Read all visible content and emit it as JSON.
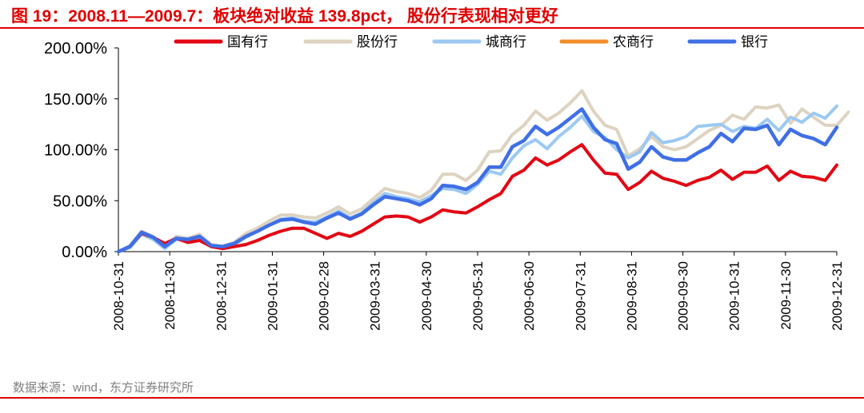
{
  "header": {
    "title": "图 19：2008.11—2009.7：板块绝对收益 139.8pct， 股份行表现相对更好"
  },
  "footer": {
    "source": "数据来源：wind，东方证券研究所"
  },
  "chart_data": {
    "type": "line",
    "title": "图 19：2008.11—2009.7：板块绝对收益 139.8pct， 股份行表现相对更好",
    "xlabel": "",
    "ylabel": "",
    "ylim": [
      0,
      200
    ],
    "yticks": [
      "0.00%",
      "50.00%",
      "100.00%",
      "150.00%",
      "200.00%"
    ],
    "ytick_values": [
      0,
      50,
      100,
      150,
      200
    ],
    "x_tick_labels": [
      "2008-10-31",
      "2008-11-30",
      "2008-12-31",
      "2009-01-31",
      "2009-02-28",
      "2009-03-31",
      "2009-04-30",
      "2009-05-31",
      "2009-06-30",
      "2009-07-31",
      "2009-08-31",
      "2009-09-30",
      "2009-10-31",
      "2009-11-30",
      "2009-12-31"
    ],
    "x_tick_positions": [
      0,
      5,
      10,
      15,
      20,
      25,
      30,
      35,
      40,
      45,
      50,
      55,
      60,
      65,
      70
    ],
    "legend_position": "top",
    "series": [
      {
        "name": "国有行",
        "color": "#e30613",
        "values": [
          0,
          5,
          18,
          14,
          8,
          13,
          9,
          11,
          5,
          3,
          5,
          7,
          11,
          16,
          20,
          23,
          23,
          18,
          13,
          18,
          15,
          20,
          27,
          34,
          35,
          34,
          29,
          34,
          41,
          39,
          38,
          44,
          51,
          57,
          74,
          80,
          92,
          85,
          90,
          98,
          105,
          90,
          77,
          76,
          61,
          68,
          79,
          72,
          69,
          65,
          70,
          73,
          80,
          71,
          78,
          78,
          84,
          70,
          79,
          74,
          73,
          70,
          85
        ]
      },
      {
        "name": "股份行",
        "color": "#ddd3c0",
        "values": [
          0,
          6,
          20,
          15,
          5,
          15,
          13,
          17,
          7,
          5,
          9,
          18,
          23,
          30,
          36,
          36,
          34,
          33,
          38,
          44,
          37,
          42,
          52,
          62,
          59,
          57,
          53,
          60,
          76,
          76,
          70,
          80,
          98,
          99,
          115,
          124,
          138,
          129,
          136,
          146,
          158,
          138,
          124,
          120,
          94,
          101,
          113,
          103,
          100,
          103,
          111,
          119,
          124,
          134,
          130,
          142,
          141,
          144,
          126,
          140,
          132,
          124,
          124,
          137
        ]
      },
      {
        "name": "城商行",
        "color": "#9cc9f2",
        "values": [
          0,
          4,
          17,
          12,
          3,
          12,
          11,
          14,
          5,
          4,
          7,
          14,
          20,
          26,
          32,
          33,
          30,
          29,
          34,
          40,
          33,
          38,
          48,
          57,
          54,
          52,
          49,
          55,
          62,
          61,
          57,
          66,
          79,
          76,
          92,
          104,
          110,
          101,
          113,
          122,
          133,
          118,
          112,
          100,
          92,
          98,
          117,
          107,
          109,
          113,
          123,
          124,
          125,
          118,
          123,
          121,
          130,
          119,
          132,
          127,
          136,
          131,
          143
        ]
      },
      {
        "name": "农商行",
        "color": "#f28e2b",
        "values": []
      },
      {
        "name": "银行",
        "color": "#3f6fe6",
        "values": [
          0,
          5,
          19,
          14,
          5,
          13,
          12,
          15,
          6,
          5,
          8,
          15,
          20,
          26,
          31,
          32,
          29,
          27,
          33,
          38,
          32,
          37,
          46,
          54,
          52,
          50,
          46,
          52,
          65,
          64,
          61,
          68,
          83,
          83,
          103,
          109,
          123,
          115,
          122,
          131,
          140,
          122,
          110,
          106,
          81,
          88,
          103,
          93,
          90,
          90,
          97,
          103,
          116,
          108,
          121,
          120,
          124,
          105,
          120,
          114,
          111,
          105,
          122
        ]
      }
    ]
  }
}
